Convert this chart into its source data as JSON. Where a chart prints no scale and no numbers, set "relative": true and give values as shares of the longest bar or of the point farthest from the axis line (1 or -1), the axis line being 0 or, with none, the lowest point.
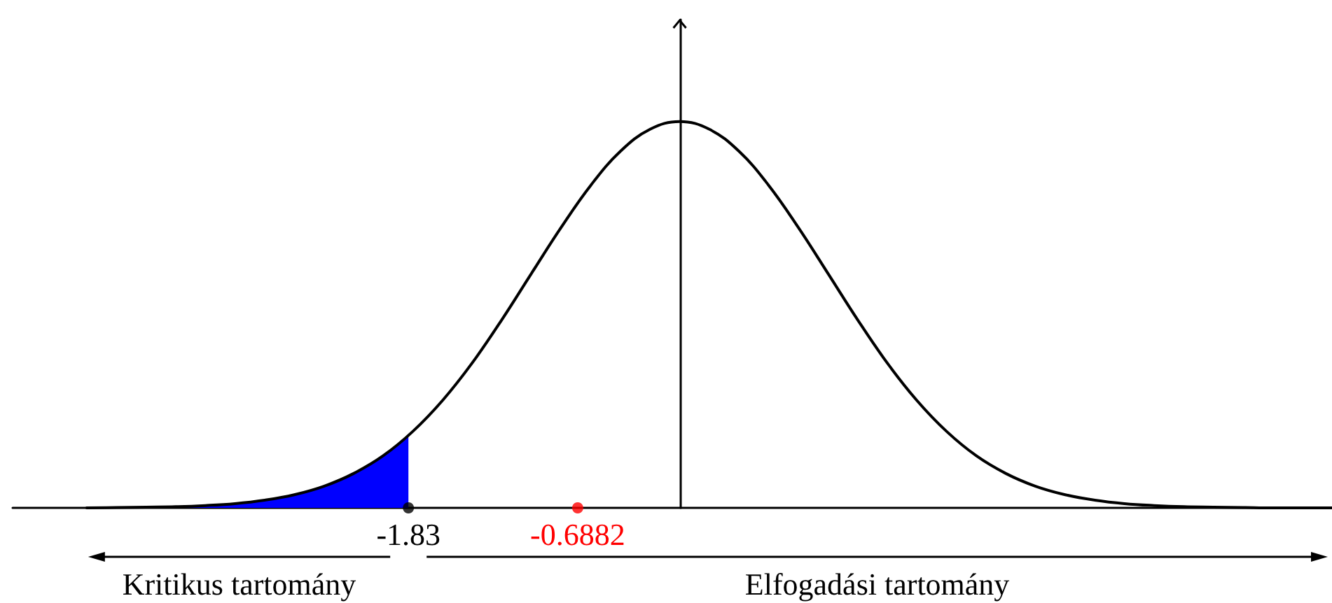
{
  "chart_data": {
    "type": "line",
    "relative": true,
    "xlim": [
      -4.5,
      4.4
    ],
    "xticks": [
      -1.83,
      -0.6882
    ],
    "tick_labels": "x",
    "grid": false,
    "marker": "none",
    "line_style": "solid",
    "annotations": [
      "Kritikus tartomány",
      "Elfogadási tartomány"
    ],
    "series": [
      {
        "type": "area",
        "color": "#0000ff",
        "x": [
          -4,
          -3.8,
          -3.6,
          -3.4,
          -3.2,
          -3,
          -2.8,
          -2.6,
          -2.4,
          -2.2,
          -2,
          -1.83
        ],
        "values": [
          0,
          0.001,
          0.002,
          0.003,
          0.006,
          0.011,
          0.02,
          0.034,
          0.056,
          0.089,
          0.135,
          0.188
        ]
      },
      {
        "color": "#000000",
        "x": [
          -4,
          -3.8,
          -3.6,
          -3.4,
          -3.2,
          -3,
          -2.8,
          -2.6,
          -2.4,
          -2.2,
          -2,
          -1.8,
          -1.6,
          -1.4,
          -1.2,
          -1,
          -0.8,
          -0.6,
          -0.4,
          -0.2,
          0,
          0.2,
          0.4,
          0.6,
          0.8,
          1,
          1.2,
          1.4,
          1.6,
          1.8,
          2,
          2.2,
          2.4,
          2.6,
          2.8,
          3,
          3.2,
          3.4,
          3.6,
          3.8,
          4,
          4.2,
          4.4
        ],
        "values": [
          0,
          0.001,
          0.002,
          0.003,
          0.006,
          0.011,
          0.02,
          0.034,
          0.056,
          0.089,
          0.135,
          0.198,
          0.278,
          0.375,
          0.487,
          0.607,
          0.726,
          0.835,
          0.923,
          0.98,
          1,
          0.98,
          0.923,
          0.835,
          0.726,
          0.607,
          0.487,
          0.375,
          0.278,
          0.198,
          0.135,
          0.089,
          0.056,
          0.034,
          0.02,
          0.011,
          0.006,
          0.003,
          0.002,
          0.001,
          0,
          0,
          0
        ]
      },
      {
        "type": "scatter",
        "marker": "circle",
        "color": "#000000",
        "x": [
          -1.83
        ],
        "values": [
          0
        ]
      },
      {
        "type": "scatter",
        "marker": "circle",
        "color": "#ff0000",
        "x": [
          -0.6882
        ],
        "values": [
          0
        ]
      }
    ]
  }
}
